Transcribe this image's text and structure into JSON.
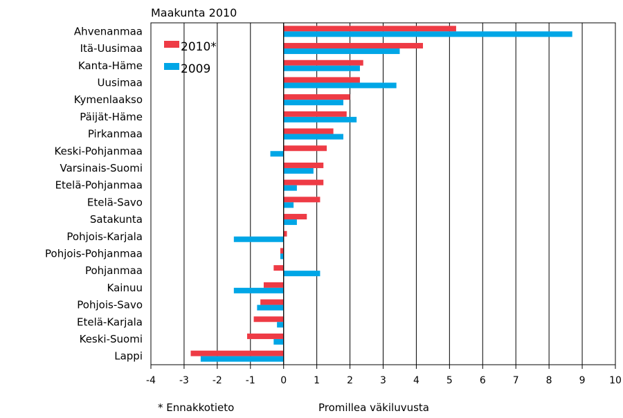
{
  "chart_data": {
    "type": "bar",
    "orientation": "horizontal",
    "title": "Maakunta 2010",
    "xlabel": "Promillea väkiluvusta",
    "footnote": "* Ennakkotieto",
    "xlim": [
      -4,
      10
    ],
    "xticks": [
      "-4",
      "-3",
      "-2",
      "-1",
      "0",
      "1",
      "2",
      "3",
      "4",
      "5",
      "6",
      "7",
      "8",
      "9",
      "10"
    ],
    "grid": "vertical",
    "legend_position": "top-left",
    "categories": [
      "Ahvenanmaa",
      "Itä-Uusimaa",
      "Kanta-Häme",
      "Uusimaa",
      "Kymenlaakso",
      "Päijät-Häme",
      "Pirkanmaa",
      "Keski-Pohjanmaa",
      "Varsinais-Suomi",
      "Etelä-Pohjanmaa",
      "Etelä-Savo",
      "Satakunta",
      "Pohjois-Karjala",
      "Pohjois-Pohjanmaa",
      "Pohjanmaa",
      "Kainuu",
      "Pohjois-Savo",
      "Etelä-Karjala",
      "Keski-Suomi",
      "Lappi"
    ],
    "series": [
      {
        "name": "2010*",
        "color": "#ee3b45",
        "values": [
          5.2,
          4.2,
          2.4,
          2.3,
          2.0,
          1.9,
          1.5,
          1.3,
          1.2,
          1.2,
          1.1,
          0.7,
          0.1,
          -0.1,
          -0.3,
          -0.6,
          -0.7,
          -0.9,
          -1.1,
          -2.8
        ]
      },
      {
        "name": "2009",
        "color": "#00a6e6",
        "values": [
          8.7,
          3.5,
          2.3,
          3.4,
          1.8,
          2.2,
          1.8,
          -0.4,
          0.9,
          0.4,
          0.3,
          0.4,
          -1.5,
          -0.1,
          1.1,
          -1.5,
          -0.8,
          -0.2,
          -0.3,
          -2.5
        ]
      }
    ]
  }
}
